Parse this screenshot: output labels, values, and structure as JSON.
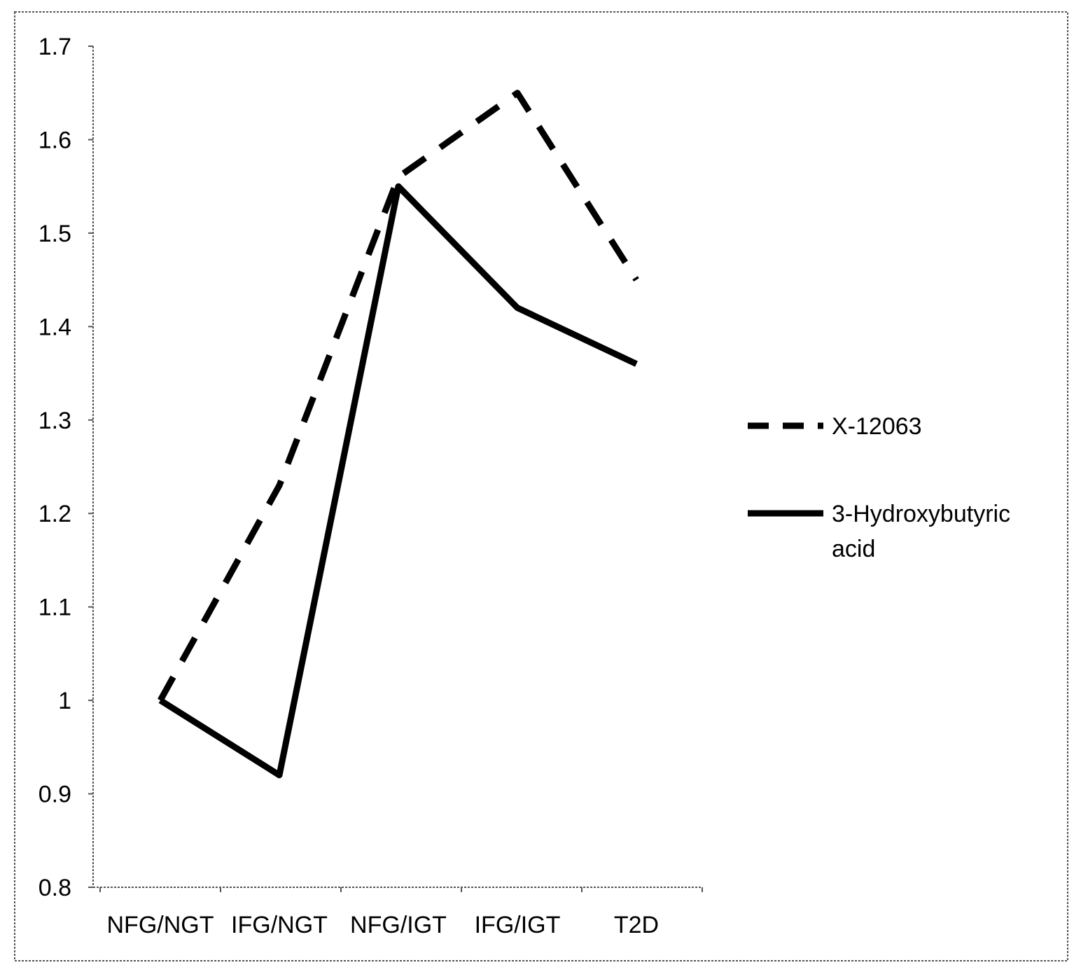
{
  "chart_data": {
    "type": "line",
    "title": "",
    "xlabel": "",
    "ylabel": "",
    "categories": [
      "NFG/NGT",
      "IFG/NGT",
      "NFG/IGT",
      "IFG/IGT",
      "T2D"
    ],
    "ylim": [
      0.8,
      1.7
    ],
    "yticks": [
      "0.8",
      "0.9",
      "1",
      "1.1",
      "1.2",
      "1.3",
      "1.4",
      "1.5",
      "1.6",
      "1.7"
    ],
    "series": [
      {
        "name": "X-12063",
        "style": "dashed",
        "color": "#000000",
        "values": [
          1.0,
          1.23,
          1.56,
          1.65,
          1.45
        ]
      },
      {
        "name": "3-Hydroxybutyric acid",
        "style": "solid",
        "color": "#000000",
        "values": [
          1.0,
          0.92,
          1.55,
          1.42,
          1.36
        ]
      }
    ],
    "legend": {
      "placement": "right",
      "entries": [
        {
          "lines": [
            "X-12063"
          ]
        },
        {
          "lines": [
            "3-Hydroxybutyric",
            "acid"
          ]
        }
      ]
    },
    "grid": false
  }
}
